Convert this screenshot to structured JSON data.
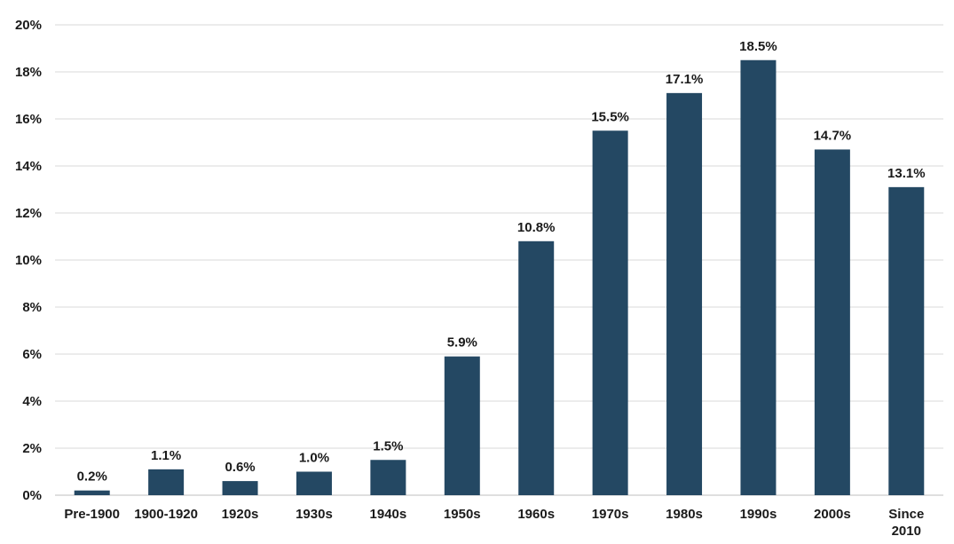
{
  "chart_data": {
    "type": "bar",
    "categories": [
      "Pre-1900",
      "1900-1920",
      "1920s",
      "1930s",
      "1940s",
      "1950s",
      "1960s",
      "1970s",
      "1980s",
      "1990s",
      "2000s",
      "Since 2010"
    ],
    "category_lines": [
      [
        "Pre-1900"
      ],
      [
        "1900-1920"
      ],
      [
        "1920s"
      ],
      [
        "1930s"
      ],
      [
        "1940s"
      ],
      [
        "1950s"
      ],
      [
        "1960s"
      ],
      [
        "1970s"
      ],
      [
        "1980s"
      ],
      [
        "1990s"
      ],
      [
        "2000s"
      ],
      [
        "Since",
        "2010"
      ]
    ],
    "values": [
      0.2,
      1.1,
      0.6,
      1.0,
      1.5,
      5.9,
      10.8,
      15.5,
      17.1,
      18.5,
      14.7,
      13.1
    ],
    "data_labels": [
      "0.2%",
      "1.1%",
      "0.6%",
      "1.0%",
      "1.5%",
      "5.9%",
      "10.8%",
      "15.5%",
      "17.1%",
      "18.5%",
      "14.7%",
      "13.1%"
    ],
    "y_ticks": [
      0,
      2,
      4,
      6,
      8,
      10,
      12,
      14,
      16,
      18,
      20
    ],
    "y_tick_labels": [
      "0%",
      "2%",
      "4%",
      "6%",
      "8%",
      "10%",
      "12%",
      "14%",
      "16%",
      "18%",
      "20%"
    ],
    "ylim": [
      0,
      20
    ],
    "grid": true,
    "legend": "none",
    "title": "",
    "xlabel": "",
    "ylabel": "",
    "bar_color": "#244863"
  }
}
